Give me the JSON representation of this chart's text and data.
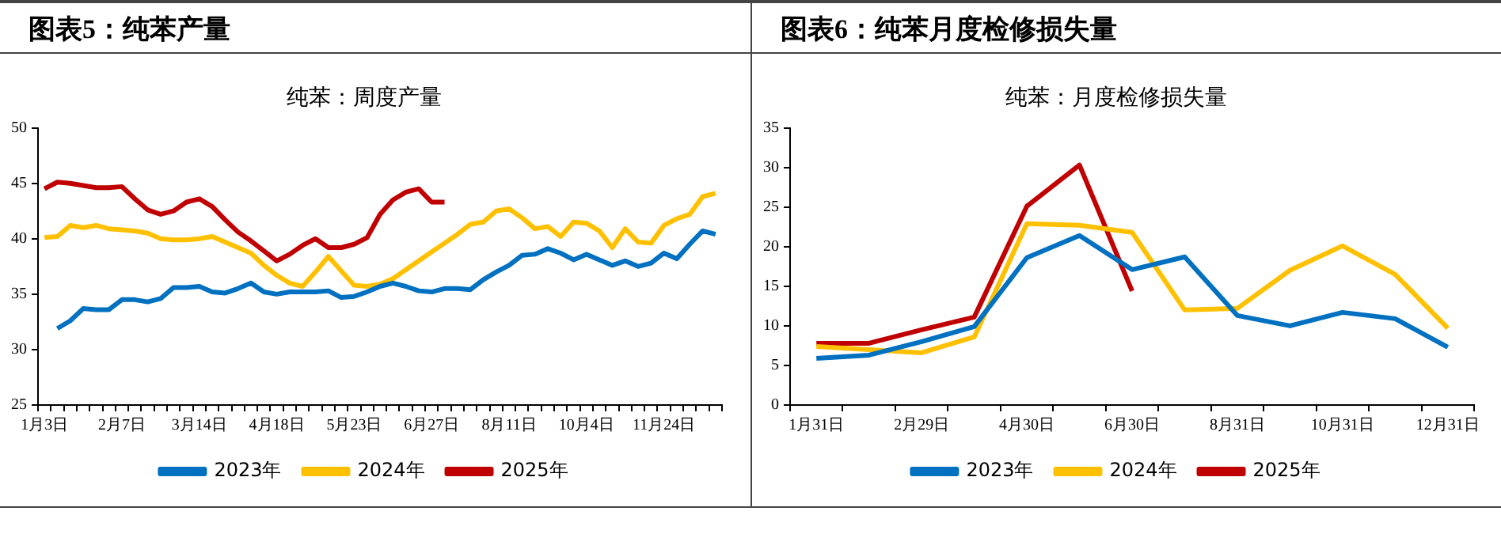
{
  "chart_data": [
    {
      "type": "line",
      "title": "图表5：纯苯产量",
      "subtitle": "纯苯：周度产量",
      "categories": [
        "1月3日",
        null,
        null,
        null,
        null,
        null,
        "2月7日",
        null,
        null,
        null,
        null,
        null,
        "3月14日",
        null,
        null,
        null,
        null,
        null,
        "4月18日",
        null,
        null,
        null,
        null,
        null,
        "5月23日",
        null,
        null,
        null,
        null,
        null,
        "6月27日",
        null,
        null,
        null,
        null,
        null,
        "8月11日",
        null,
        null,
        null,
        null,
        null,
        "10月4日",
        null,
        null,
        null,
        null,
        null,
        "11月24日",
        null,
        null,
        null,
        null
      ],
      "series": [
        {
          "name": "2023年",
          "color": "#0070c0",
          "values": [
            null,
            31.9,
            32.6,
            33.7,
            33.6,
            33.6,
            34.5,
            34.5,
            34.3,
            34.6,
            35.6,
            35.6,
            35.7,
            35.2,
            35.1,
            35.5,
            36.0,
            35.2,
            35.0,
            35.2,
            35.2,
            35.2,
            35.3,
            34.7,
            34.8,
            35.2,
            35.7,
            36.0,
            35.7,
            35.3,
            35.2,
            35.5,
            35.5,
            35.4,
            36.3,
            37.0,
            37.6,
            38.5,
            38.6,
            39.1,
            38.7,
            38.1,
            38.6,
            38.1,
            37.6,
            38.0,
            37.5,
            37.8,
            38.7,
            38.2,
            39.5,
            40.7,
            40.4
          ]
        },
        {
          "name": "2024年",
          "color": "#ffc000",
          "values": [
            40.1,
            40.2,
            41.2,
            41.0,
            41.2,
            40.9,
            40.8,
            40.7,
            40.5,
            40.0,
            39.9,
            39.9,
            40.0,
            40.2,
            39.7,
            39.2,
            38.7,
            37.6,
            36.7,
            36.0,
            35.7,
            37.0,
            38.4,
            37.1,
            35.8,
            35.7,
            35.9,
            36.4,
            37.2,
            38.0,
            38.8,
            39.6,
            40.4,
            41.3,
            41.5,
            42.5,
            42.7,
            41.9,
            40.9,
            41.1,
            40.2,
            41.5,
            41.4,
            40.7,
            39.2,
            40.9,
            39.7,
            39.6,
            41.2,
            41.8,
            42.2,
            43.8,
            44.1
          ]
        },
        {
          "name": "2025年",
          "color": "#c00000",
          "values": [
            44.5,
            45.1,
            45.0,
            44.8,
            44.6,
            44.6,
            44.7,
            43.6,
            42.6,
            42.2,
            42.5,
            43.3,
            43.6,
            42.9,
            41.7,
            40.6,
            39.8,
            38.9,
            38.0,
            38.6,
            39.4,
            40.0,
            39.2,
            39.2,
            39.5,
            40.1,
            42.2,
            43.5,
            44.2,
            44.5,
            43.3,
            43.3,
            null,
            null,
            null,
            null,
            null,
            null,
            null,
            null,
            null,
            null,
            null,
            null,
            null,
            null,
            null,
            null,
            null,
            null,
            null,
            null,
            null
          ]
        }
      ],
      "ylim": [
        25,
        50
      ],
      "yticks": [
        25,
        30,
        35,
        40,
        45,
        50
      ],
      "grid": false,
      "legend": "bottom"
    },
    {
      "type": "line",
      "title": "图表6：纯苯月度检修损失量",
      "subtitle": "纯苯：月度检修损失量",
      "categories": [
        "1月31日",
        null,
        "2月29日",
        null,
        "4月30日",
        null,
        "6月30日",
        null,
        "8月31日",
        null,
        "10月31日",
        null,
        "12月31日"
      ],
      "series": [
        {
          "name": "2023年",
          "color": "#0070c0",
          "values": [
            5.9,
            6.3,
            8.0,
            9.9,
            18.6,
            21.4,
            17.1,
            18.7,
            11.3,
            10.0,
            11.7,
            10.9,
            7.3
          ]
        },
        {
          "name": "2024年",
          "color": "#ffc000",
          "values": [
            7.4,
            7.0,
            6.6,
            8.6,
            22.9,
            22.7,
            21.8,
            12.0,
            12.2,
            17.0,
            20.1,
            16.5,
            9.7
          ]
        },
        {
          "name": "2025年",
          "color": "#c00000",
          "values": [
            7.8,
            7.8,
            9.5,
            11.1,
            25.1,
            30.3,
            14.4,
            null,
            null,
            null,
            null,
            null,
            null
          ]
        }
      ],
      "ylim": [
        0,
        35
      ],
      "yticks": [
        0,
        5,
        10,
        15,
        20,
        25,
        30,
        35
      ],
      "grid": false,
      "legend": "bottom"
    }
  ]
}
